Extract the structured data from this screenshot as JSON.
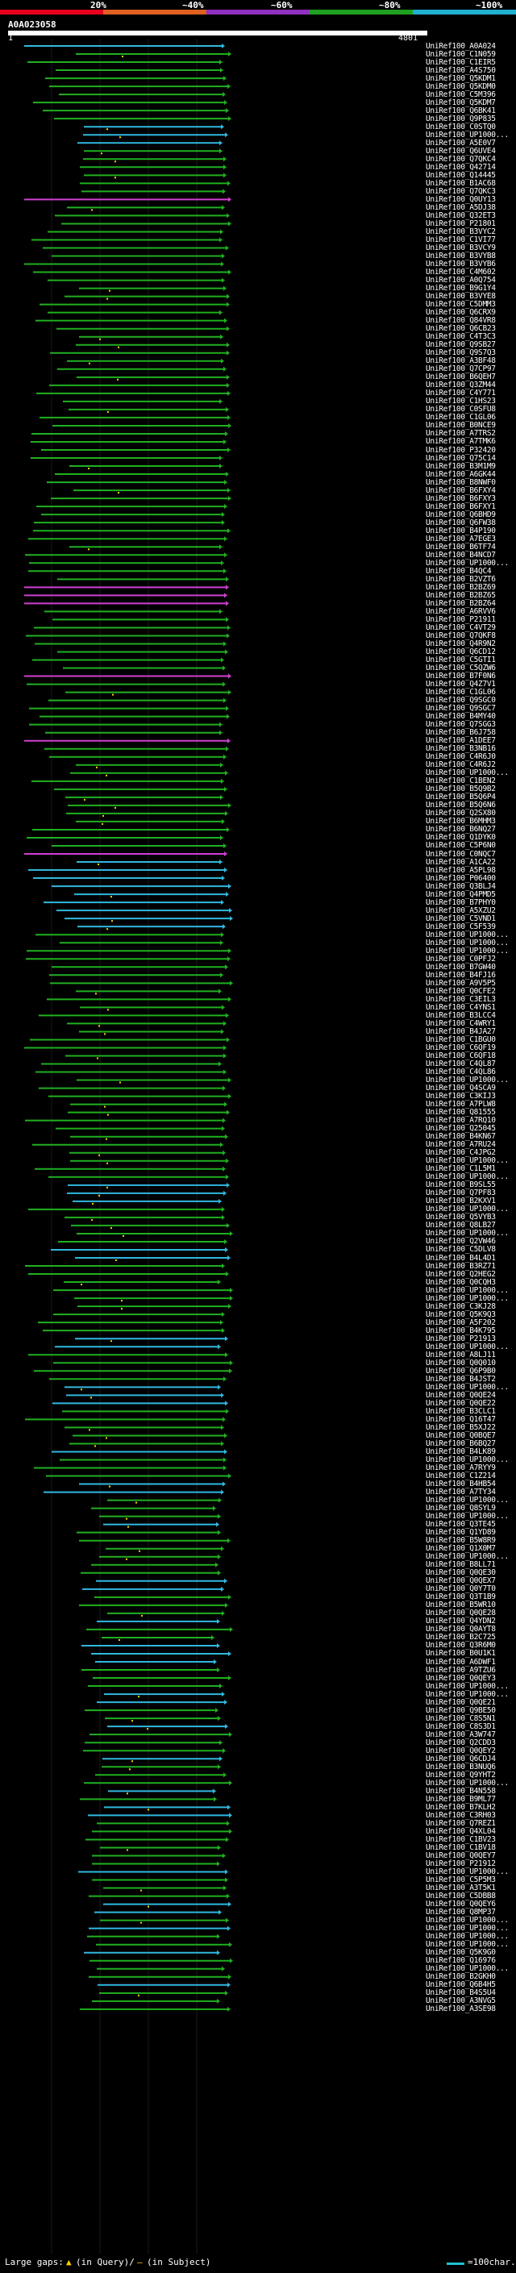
{
  "legend": {
    "labels": [
      "20%",
      "~40%",
      "~60%",
      "~80%",
      "~100%"
    ],
    "colors": [
      "#e8001c",
      "#e06020",
      "#9030c0",
      "#20a020",
      "#20b0d0"
    ]
  },
  "query": {
    "title": "A0A023058",
    "start": "1",
    "end": "4801"
  },
  "hits": [
    "UniRef100_A0A024",
    "UniRef100_C1N059",
    "UniRef100_C1EIR5",
    "UniRef100_A4S750",
    "UniRef100_Q5KDM1",
    "UniRef100_Q5KDM0",
    "UniRef100_C5M396",
    "UniRef100_Q5KDM7",
    "UniRef100_Q6BK41",
    "UniRef100_Q9P835",
    "UniRef100_C0STQ0",
    "UniRef100_UP1000...",
    "UniRef100_A5E0V7",
    "UniRef100_Q6UVE4",
    "UniRef100_Q7QKC4",
    "UniRef100_Q42714",
    "UniRef100_Q14445",
    "UniRef100_B1AC68",
    "UniRef100_Q7QKC3",
    "UniRef100_Q0UY13",
    "UniRef100_A5DJ38",
    "UniRef100_Q32ET3",
    "UniRef100_P21801",
    "UniRef100_B3VYC2",
    "UniRef100_C1VI77",
    "UniRef100_B3VCY9",
    "UniRef100_B3VYB8",
    "UniRef100_B3VYB6",
    "UniRef100_C4M602",
    "UniRef100_A0Q754",
    "UniRef100_B9G1Y4",
    "UniRef100_B3VYE8",
    "UniRef100_C5DMM3",
    "UniRef100_Q6CRX9",
    "UniRef100_Q84VR8",
    "UniRef100_Q6CB23",
    "UniRef100_C4T3C3",
    "UniRef100_Q9SB27",
    "UniRef100_Q9S7Q3",
    "UniRef100_A3BF48",
    "UniRef100_Q7CP97",
    "UniRef100_B6QEH7",
    "UniRef100_Q3ZM44",
    "UniRef100_C4Y771",
    "UniRef100_C1HS23",
    "UniRef100_C0SFU8",
    "UniRef100_C1GL06",
    "UniRef100_B0NCE9",
    "UniRef100_A7TRS2",
    "UniRef100_A7TMK6",
    "UniRef100_P32420",
    "UniRef100_Q75C14",
    "UniRef100_B3M1M9",
    "UniRef100_A6GK44",
    "UniRef100_B8NWF0",
    "UniRef100_B6FXY4",
    "UniRef100_B6FXY3",
    "UniRef100_B6FXY1",
    "UniRef100_Q6BHD9",
    "UniRef100_Q6FW38",
    "UniRef100_B4P190",
    "UniRef100_A7EGE3",
    "UniRef100_B6TF74",
    "UniRef100_B4NCD7",
    "UniRef100_UP1000...",
    "UniRef100_B4QC4",
    "UniRef100_B2VZT6",
    "UniRef100_B2BZ69",
    "UniRef100_B2BZ65",
    "UniRef100_B2BZ64",
    "UniRef100_A6RVV6",
    "UniRef100_P21911",
    "UniRef100_C4VT29",
    "UniRef100_Q7QKF8",
    "UniRef100_Q4R9N2",
    "UniRef100_Q6CD12",
    "UniRef100_C5GTI1",
    "UniRef100_C5QZW6",
    "UniRef100_B7F0N6",
    "UniRef100_Q4Z7V1",
    "UniRef100_C1GL06",
    "UniRef100_Q9SGC0",
    "UniRef100_Q9SGC7",
    "UniRef100_B4MY40",
    "UniRef100_Q7SGG3",
    "UniRef100_B6J758",
    "UniRef100_A1DEE7",
    "UniRef100_B3NB16",
    "UniRef100_C4R6J0",
    "UniRef100_C4R6J2",
    "UniRef100_UP1000...",
    "UniRef100_C1BEN2",
    "UniRef100_B5Q9B2",
    "UniRef100_B5Q6P4",
    "UniRef100_B5Q6N6",
    "UniRef100_Q2SX80",
    "UniRef100_B6MHM3",
    "UniRef100_B6NQ27",
    "UniRef100_Q1DYK0",
    "UniRef100_C5P6N0",
    "UniRef100_C0NQC7",
    "UniRef100_A1CA22",
    "UniRef100_A5PL98",
    "UniRef100_P06400",
    "UniRef100_Q3BLJ4",
    "UniRef100_Q4PMD5",
    "UniRef100_B7PHY0",
    "UniRef100_A5XZU2",
    "UniRef100_C5VND1",
    "UniRef100_C5F539",
    "UniRef100_UP1000...",
    "UniRef100_UP1000...",
    "UniRef100_UP1000...",
    "UniRef100_C0PFJ2",
    "UniRef100_B7GW40",
    "UniRef100_B4FJ16",
    "UniRef100_A9V5P5",
    "UniRef100_Q0CFE2",
    "UniRef100_C3EIL3",
    "UniRef100_C4YNS1",
    "UniRef100_B3LCC4",
    "UniRef100_C4WRY1",
    "UniRef100_B4JA27",
    "UniRef100_C1BGU0",
    "UniRef100_C6QF19",
    "UniRef100_C6QF18",
    "UniRef100_C4QL87",
    "UniRef100_C4QL86",
    "UniRef100_UP1000...",
    "UniRef100_Q4SCA9",
    "UniRef100_C3KIJ3",
    "UniRef100_A7PLW8",
    "UniRef100_Q81555",
    "UniRef100_A7RQ10",
    "UniRef100_Q25045",
    "UniRef100_B4KN67",
    "UniRef100_A7RU24",
    "UniRef100_C4JPG2",
    "UniRef100_UP1000...",
    "UniRef100_C1L5M1",
    "UniRef100_UP1000...",
    "UniRef100_B9SL55",
    "UniRef100_Q7PF83",
    "UniRef100_B2KXV1",
    "UniRef100_UP1000...",
    "UniRef100_Q5VYB3",
    "UniRef100_Q8LB27",
    "UniRef100_UP1000...",
    "UniRef100_Q2VW46",
    "UniRef100_C5DLV8",
    "UniRef100_B4L4D1",
    "UniRef100_B3RZ71",
    "UniRef100_Q2HEG2",
    "UniRef100_Q0CQH3",
    "UniRef100_UP1000...",
    "UniRef100_UP1000...",
    "UniRef100_C3KJ28",
    "UniRef100_Q5K9Q3",
    "UniRef100_A5F202",
    "UniRef100_B4K795",
    "UniRef100_P21913",
    "UniRef100_UP1000...",
    "UniRef100_A8LJ11",
    "UniRef100_Q0Q010",
    "UniRef100_Q6P9B0",
    "UniRef100_B4JST2",
    "UniRef100_UP1000...",
    "UniRef100_Q0QE24",
    "UniRef100_Q0QE22",
    "UniRef100_B3CLC1",
    "UniRef100_Q16T47",
    "UniRef100_B5XJ22",
    "UniRef100_Q0BQE7",
    "UniRef100_B6BQ27",
    "UniRef100_B4LK89",
    "UniRef100_UP1000...",
    "UniRef100_A7RYY9",
    "UniRef100_C1Z214",
    "UniRef100_B4HB54",
    "UniRef100_A7TY34",
    "UniRef100_UP1000...",
    "UniRef100_Q8SYL9",
    "UniRef100_UP1000...",
    "UniRef100_Q3TE45",
    "UniRef100_Q1YD89",
    "UniRef100_B5W8R9",
    "UniRef100_Q1X0M7",
    "UniRef100_UP1000...",
    "UniRef100_B8LL71",
    "UniRef100_Q0QE30",
    "UniRef100_Q0QEX7",
    "UniRef100_Q0Y7T0",
    "UniRef100_Q3T1B9",
    "UniRef100_B5WR10",
    "UniRef100_Q0QE28",
    "UniRef100_Q4YDN2",
    "UniRef100_Q0AYT8",
    "UniRef100_B2C725",
    "UniRef100_Q3R6M0",
    "UniRef100_B0U1K1",
    "UniRef100_A6DWF1",
    "UniRef100_A9TZU6",
    "UniRef100_Q0QEY3",
    "UniRef100_UP1000...",
    "UniRef100_UP1000...",
    "UniRef100_Q0QE21",
    "UniRef100_Q9BE50",
    "UniRef100_C8S5N1",
    "UniRef100_C8S3D1",
    "UniRef100_A3W747",
    "UniRef100_Q2CDD3",
    "UniRef100_Q0QEY2",
    "UniRef100_Q6CDJ4",
    "UniRef100_B3NUQ6",
    "UniRef100_Q9YHT2",
    "UniRef100_UP1000...",
    "UniRef100_B4N558",
    "UniRef100_B9ML77",
    "UniRef100_B7KLH2",
    "UniRef100_C3RH03",
    "UniRef100_Q7REZ1",
    "UniRef100_Q4XL04",
    "UniRef100_C1BV23",
    "UniRef100_C1BV18",
    "UniRef100_Q0QEY7",
    "UniRef100_P21912",
    "UniRef100_UP1000...",
    "UniRef100_C5P5M3",
    "UniRef100_A3T5K1",
    "UniRef100_C5DBB8",
    "UniRef100_Q0QEY6",
    "UniRef100_Q8MP37",
    "UniRef100_UP1000...",
    "UniRef100_UP1000...",
    "UniRef100_UP1000...",
    "UniRef100_UP1000...",
    "UniRef100_Q5K9G0",
    "UniRef100_Q16976",
    "UniRef100_UP1000...",
    "UniRef100_B2GKH0",
    "UniRef100_Q6B4H5",
    "UniRef100_B4S5U4",
    "UniRef100_A3NVG5",
    "UniRef100_A3SE98"
  ],
  "footer": {
    "gaps_label": "Large gaps:",
    "query_gap": "(in Query)/",
    "subject_gap": "(in Subject)",
    "scale_label": "=100char."
  }
}
